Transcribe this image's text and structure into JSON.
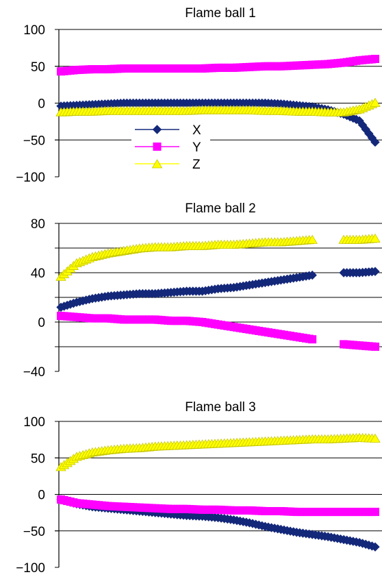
{
  "colors": {
    "X": "#14287A",
    "Y": "#FF00FF",
    "Z": "#FFFF00"
  },
  "legend": [
    "X",
    "Y",
    "Z"
  ],
  "chart_data": [
    {
      "type": "line",
      "title": "Flame ball 1",
      "ylim": [
        -100,
        100
      ],
      "yticks": [
        -100,
        -50,
        0,
        50,
        100
      ],
      "ytick_labels": [
        "−100",
        "−50",
        "0",
        "50",
        "100"
      ],
      "gridlines": [
        -50,
        0,
        50,
        100
      ],
      "x": [
        0,
        5,
        10,
        15,
        20,
        25,
        30,
        35,
        40,
        45,
        50,
        55,
        60,
        65,
        70,
        75,
        80,
        85,
        90,
        95,
        100
      ],
      "series": [
        {
          "name": "X",
          "values": [
            -4,
            -3,
            -2,
            -1,
            0,
            0,
            0,
            0,
            0,
            0,
            0,
            0,
            0,
            0,
            -1,
            -3,
            -5,
            -9,
            -15,
            -24,
            -53
          ]
        },
        {
          "name": "Y",
          "values": [
            43,
            45,
            46,
            46,
            47,
            47,
            47,
            47,
            47,
            47,
            48,
            48,
            49,
            50,
            50,
            51,
            52,
            53,
            55,
            58,
            60
          ]
        },
        {
          "name": "Z",
          "values": [
            -12,
            -11,
            -11,
            -10,
            -10,
            -10,
            -10,
            -10,
            -10,
            -9,
            -9,
            -9,
            -9,
            -10,
            -10,
            -11,
            -11,
            -12,
            -12,
            -8,
            1
          ]
        }
      ]
    },
    {
      "type": "line",
      "title": "Flame ball 2",
      "ylim": [
        -40,
        80
      ],
      "yticks": [
        -40,
        0,
        40,
        80
      ],
      "ytick_labels": [
        "−40",
        "0",
        "40",
        "80"
      ],
      "gridlines": [
        -20,
        0,
        20,
        40,
        60,
        80
      ],
      "x": [
        0,
        5,
        10,
        15,
        20,
        25,
        30,
        35,
        40,
        45,
        50,
        55,
        60,
        65,
        70,
        75,
        80,
        85,
        90,
        95,
        100
      ],
      "series": [
        {
          "name": "X",
          "values": [
            12,
            16,
            19,
            21,
            22,
            23,
            23,
            24,
            25,
            25,
            27,
            28,
            30,
            32,
            34,
            36,
            38,
            null,
            40,
            40,
            41
          ]
        },
        {
          "name": "Y",
          "values": [
            5,
            4,
            3,
            3,
            2,
            2,
            2,
            1,
            1,
            0,
            -2,
            -4,
            -6,
            -8,
            -10,
            -12,
            -14,
            null,
            -18,
            -19,
            -20
          ]
        },
        {
          "name": "Z",
          "values": [
            37,
            48,
            53,
            56,
            58,
            60,
            61,
            61,
            62,
            62,
            63,
            63,
            64,
            65,
            65,
            66,
            67,
            null,
            67,
            67,
            68
          ]
        }
      ]
    },
    {
      "type": "line",
      "title": "Flame ball 3",
      "ylim": [
        -100,
        100
      ],
      "yticks": [
        -100,
        -50,
        0,
        50,
        100
      ],
      "ytick_labels": [
        "−100",
        "−50",
        "0",
        "50",
        "100"
      ],
      "gridlines": [
        -50,
        0,
        50,
        100
      ],
      "x": [
        0,
        5,
        10,
        15,
        20,
        25,
        30,
        35,
        40,
        45,
        50,
        55,
        60,
        65,
        70,
        75,
        80,
        85,
        90,
        95,
        100
      ],
      "series": [
        {
          "name": "X",
          "values": [
            -7,
            -13,
            -17,
            -19,
            -21,
            -23,
            -25,
            -27,
            -29,
            -30,
            -32,
            -35,
            -39,
            -44,
            -48,
            -52,
            -55,
            -58,
            -62,
            -66,
            -72
          ]
        },
        {
          "name": "Y",
          "values": [
            -7,
            -12,
            -14,
            -16,
            -17,
            -18,
            -19,
            -20,
            -20,
            -21,
            -21,
            -22,
            -22,
            -23,
            -23,
            -24,
            -24,
            -24,
            -24,
            -24,
            -24
          ]
        },
        {
          "name": "Z",
          "values": [
            38,
            52,
            58,
            61,
            63,
            64,
            66,
            67,
            68,
            69,
            70,
            71,
            72,
            73,
            74,
            75,
            76,
            76,
            77,
            78,
            77
          ]
        }
      ]
    }
  ]
}
